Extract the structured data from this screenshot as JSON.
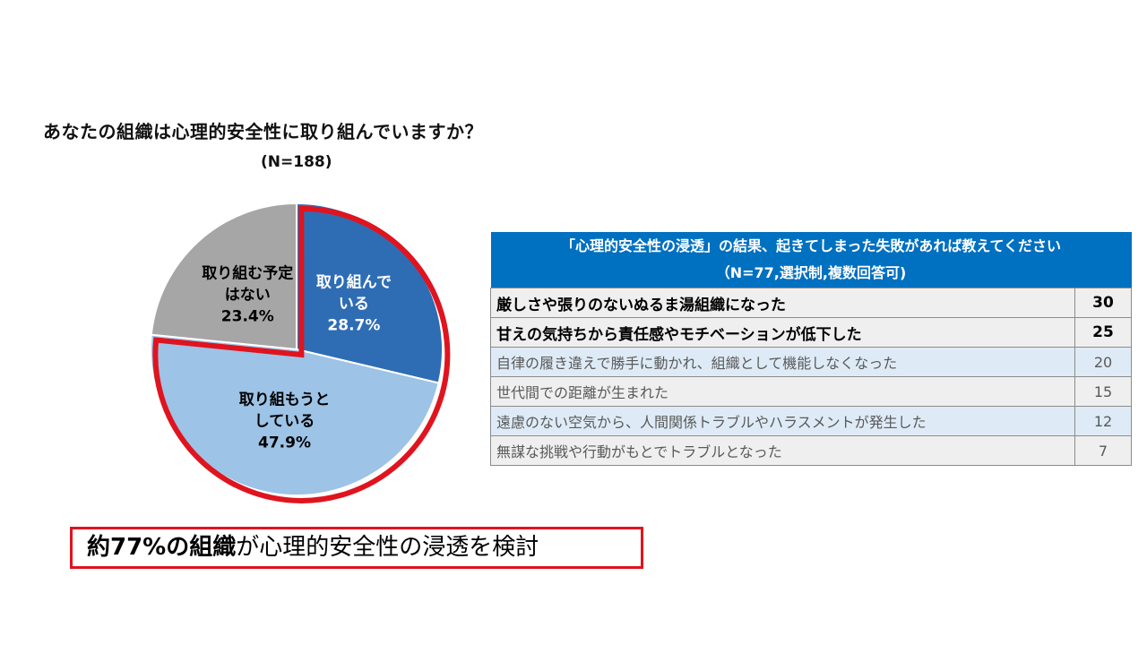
{
  "chart_data": {
    "type": "pie",
    "title": "あなたの組織は心理的安全性に取り組んでいますか？",
    "subtitle": "(N=188)",
    "slices": [
      {
        "label_lines": [
          "取り組んで",
          "いる"
        ],
        "value": 28.7,
        "value_label": "28.7%",
        "color": "#2e6db4",
        "text_color": "#ffffff",
        "highlight": true
      },
      {
        "label_lines": [
          "取り組もうと",
          "している"
        ],
        "value": 47.9,
        "value_label": "47.9%",
        "color": "#9dc3e6",
        "text_color": "#000000",
        "highlight": true
      },
      {
        "label_lines": [
          "取り組む予定",
          "はない"
        ],
        "value": 23.4,
        "value_label": "23.4%",
        "color": "#a6a6a6",
        "text_color": "#000000",
        "highlight": false
      }
    ],
    "highlight_color": "#e0141e"
  },
  "table": {
    "header_line1": "「心理的安全性の浸透」の結果、起きてしまった失敗があれば教えてください",
    "header_line2": "（N=77,選択制,複数回答可)",
    "header_bg": "#0070c0",
    "rows": [
      {
        "text": "厳しさや張りのないぬるま湯組織になった",
        "count": "30"
      },
      {
        "text": "甘えの気持ちから責任感やモチベーションが低下した",
        "count": "25"
      },
      {
        "text": "自律の履き違えで勝手に動かれ、組織として機能しなくなった",
        "count": "20"
      },
      {
        "text": "世代間での距離が生まれた",
        "count": "15"
      },
      {
        "text": "遠慮のない空気から、人間関係トラブルやハラスメントが発生した",
        "count": "12"
      },
      {
        "text": "無謀な挑戦や行動がもとでトラブルとなった",
        "count": "7"
      }
    ]
  },
  "conclusion": {
    "emphasis": "約77%の組織",
    "rest": "が心理的安全性の浸透を検討"
  }
}
